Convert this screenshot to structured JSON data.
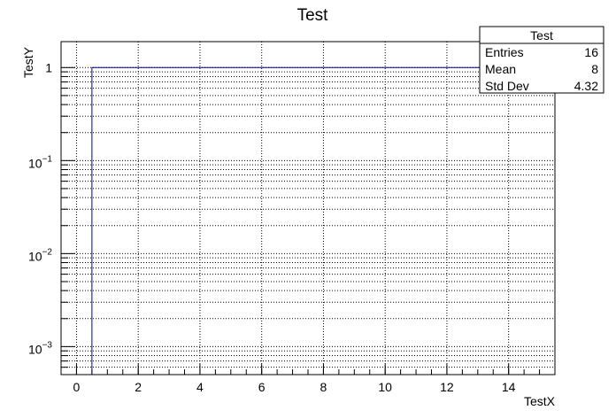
{
  "chart_data": {
    "type": "histogram",
    "title": "Test",
    "xlabel": "TestX",
    "ylabel": "TestY",
    "bins": [
      -0.5,
      0.5,
      1.5,
      2.5,
      3.5,
      4.5,
      5.5,
      6.5,
      7.5,
      8.5,
      9.5,
      10.5,
      11.5,
      12.5,
      13.5,
      14.5,
      15.5
    ],
    "values": [
      0,
      1,
      1,
      1,
      1,
      1,
      1,
      1,
      1,
      1,
      1,
      1,
      1,
      1,
      1,
      1
    ],
    "color": "#000099",
    "log_y": true,
    "grid": true,
    "xlim": [
      -0.5,
      15.5
    ],
    "xticks": [
      0,
      2,
      4,
      6,
      8,
      10,
      12,
      14
    ],
    "ylim": [
      0.0005,
      1.9
    ],
    "yticks": [
      {
        "value": 0.001,
        "label": "10",
        "exponent": "−3"
      },
      {
        "value": 0.01,
        "label": "10",
        "exponent": "−2"
      },
      {
        "value": 0.1,
        "label": "10",
        "exponent": "−1"
      },
      1
    ],
    "stats": {
      "title": "Test",
      "rows": [
        [
          "Entries",
          "16"
        ],
        [
          "Mean",
          "8"
        ],
        [
          "Std Dev",
          "4.32"
        ]
      ]
    }
  }
}
